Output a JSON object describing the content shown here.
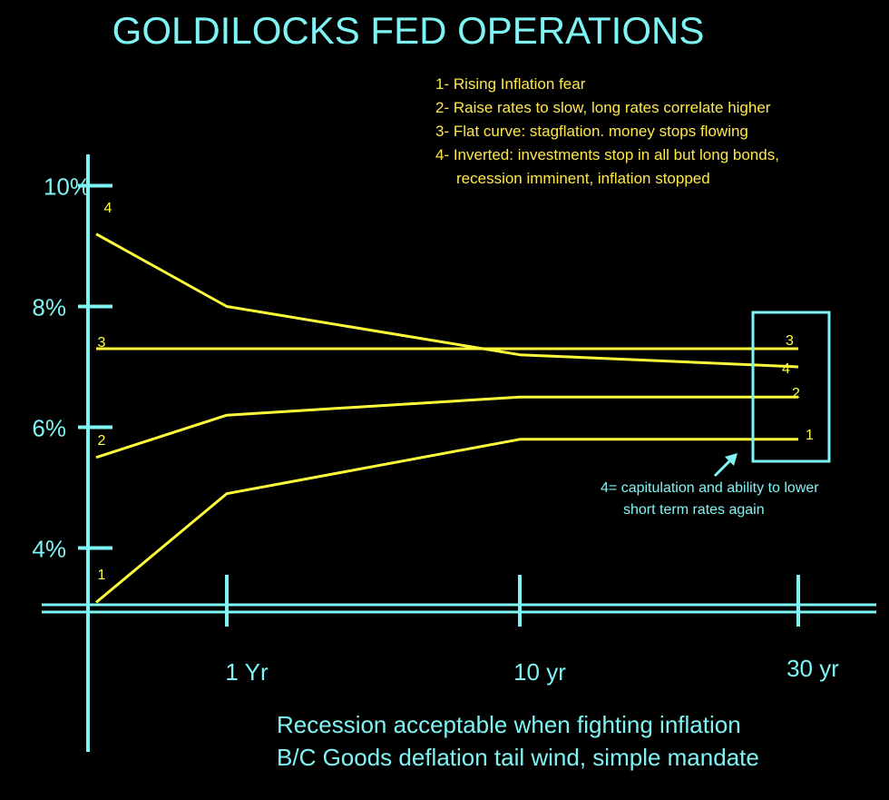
{
  "colors": {
    "background": "#000000",
    "axis": "#7ff4f4",
    "curve": "#ffff3a",
    "annotation_text": "#ffe84a"
  },
  "chart_data": {
    "type": "line",
    "title": "GOLDILOCKS FED OPERATIONS",
    "y_tick_labels": [
      "10%",
      "8%",
      "6%",
      "4%"
    ],
    "y_ticks": [
      10,
      8,
      6,
      4
    ],
    "x_tick_labels": [
      "1 Yr",
      "10 yr",
      "30 yr"
    ],
    "x_ticks": [
      1,
      10,
      30
    ],
    "legend": [
      "1- Rising Inflation fear",
      "2- Raise rates to slow, long rates correlate higher",
      "3- Flat curve: stagflation. money stops flowing",
      "4- Inverted: investments stop in all but long bonds,",
      "recession imminent, inflation stopped"
    ],
    "series": [
      {
        "name": "1",
        "points": [
          [
            0,
            3.1
          ],
          [
            1,
            4.9
          ],
          [
            10,
            5.8
          ],
          [
            30,
            5.8
          ]
        ]
      },
      {
        "name": "2",
        "points": [
          [
            0,
            5.5
          ],
          [
            1,
            6.2
          ],
          [
            10,
            6.5
          ],
          [
            30,
            6.5
          ]
        ]
      },
      {
        "name": "3",
        "points": [
          [
            0,
            7.3
          ],
          [
            10,
            7.3
          ],
          [
            30,
            7.3
          ]
        ]
      },
      {
        "name": "4",
        "points": [
          [
            0,
            9.2
          ],
          [
            1,
            8
          ],
          [
            10,
            7.2
          ],
          [
            30,
            7
          ]
        ]
      }
    ],
    "annotation": [
      "4= capitulation and ability to lower",
      "short term rates again"
    ],
    "footer": [
      "Recession acceptable when fighting inflation",
      "B/C Goods deflation tail wind, simple mandate"
    ]
  }
}
